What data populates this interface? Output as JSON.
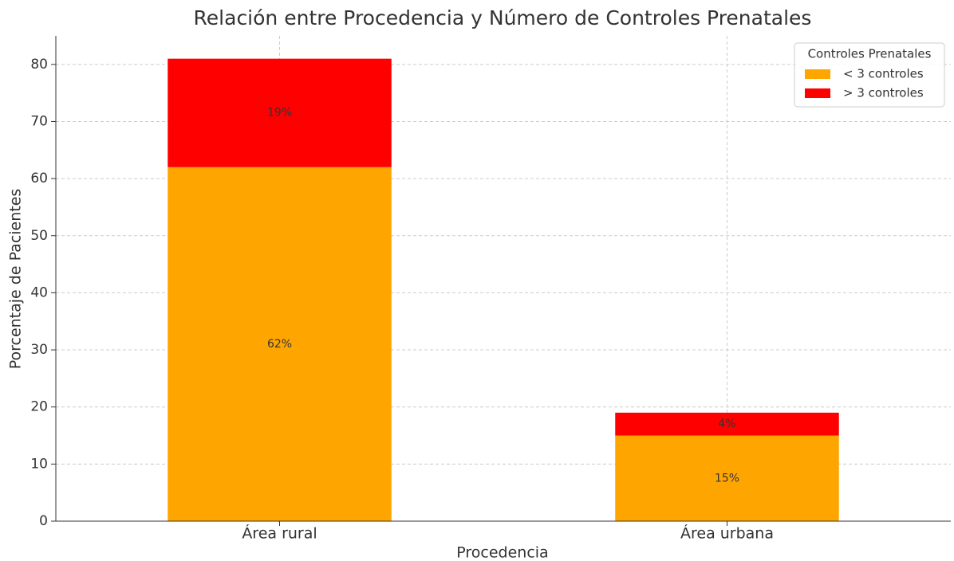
{
  "chart_data": {
    "type": "stacked_bar",
    "title": "Relación entre Procedencia y Número de Controles Prenatales",
    "x_label": "Procedencia",
    "y_label": "Porcentaje de Pacientes",
    "categories": [
      "Área rural",
      "Área urbana"
    ],
    "series": [
      {
        "name": "< 3 controles",
        "color": "#FFA500",
        "values": [
          62,
          15
        ],
        "value_labels": [
          "62%",
          "15%"
        ]
      },
      {
        "name": "> 3 controles",
        "color": "#FF0000",
        "values": [
          19,
          4
        ],
        "value_labels": [
          "19%",
          "4%"
        ]
      }
    ],
    "ylim": [
      0,
      85
    ],
    "yticks": [
      0,
      10,
      20,
      30,
      40,
      50,
      60,
      70,
      80
    ],
    "grid": true,
    "legend_title": "Controles Prenatales",
    "legend_position": "upper right"
  }
}
